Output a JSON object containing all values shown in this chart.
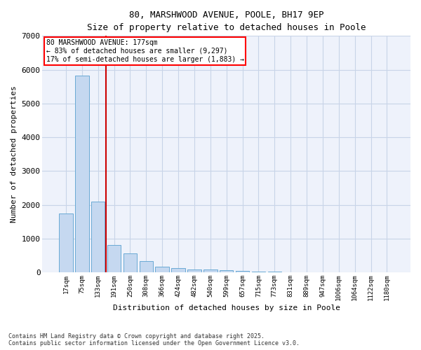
{
  "title_line1": "80, MARSHWOOD AVENUE, POOLE, BH17 9EP",
  "title_line2": "Size of property relative to detached houses in Poole",
  "xlabel": "Distribution of detached houses by size in Poole",
  "ylabel": "Number of detached properties",
  "bar_categories": [
    "17sqm",
    "75sqm",
    "133sqm",
    "191sqm",
    "250sqm",
    "308sqm",
    "366sqm",
    "424sqm",
    "482sqm",
    "540sqm",
    "599sqm",
    "657sqm",
    "715sqm",
    "773sqm",
    "831sqm",
    "889sqm",
    "947sqm",
    "1006sqm",
    "1064sqm",
    "1122sqm",
    "1180sqm"
  ],
  "bar_values": [
    1750,
    5820,
    2100,
    800,
    560,
    330,
    170,
    115,
    80,
    90,
    55,
    35,
    20,
    15,
    10,
    8,
    5,
    5,
    5,
    5,
    5
  ],
  "bar_color": "#c5d8f0",
  "bar_edge_color": "#6aaad4",
  "annotation_line1": "80 MARSHWOOD AVENUE: 177sqm",
  "annotation_line2": "← 83% of detached houses are smaller (9,297)",
  "annotation_line3": "17% of semi-detached houses are larger (1,883) →",
  "vline_color": "#cc0000",
  "vline_x": 2.5,
  "ylim": [
    0,
    7000
  ],
  "yticks": [
    0,
    1000,
    2000,
    3000,
    4000,
    5000,
    6000,
    7000
  ],
  "grid_color": "#c8d4e8",
  "background_color": "#eef2fb",
  "footer_line1": "Contains HM Land Registry data © Crown copyright and database right 2025.",
  "footer_line2": "Contains public sector information licensed under the Open Government Licence v3.0."
}
